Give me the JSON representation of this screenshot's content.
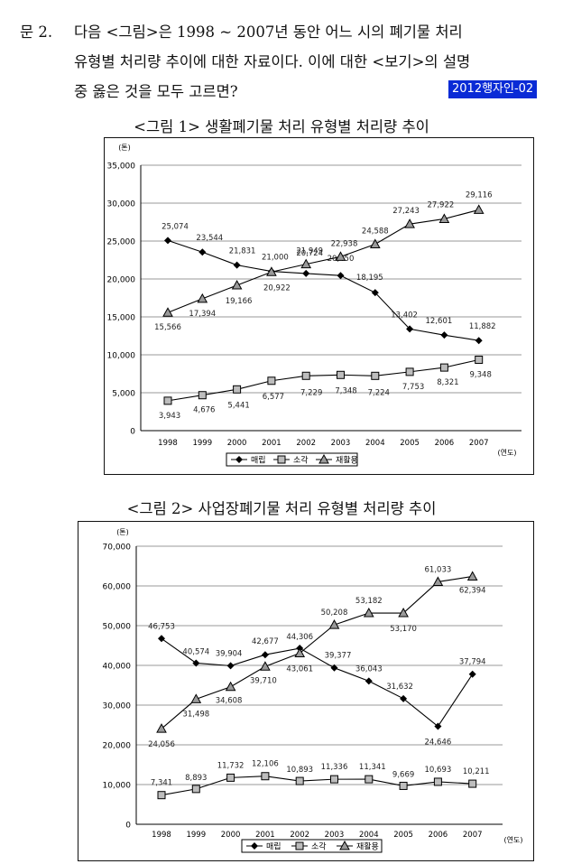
{
  "question": {
    "number": "문  2.",
    "lines": [
      "다음 <그림>은 1998 ~ 2007년 동안 어느 시의 폐기물 처리",
      "유형별 처리량 추이에 대한 자료이다. 이에 대한 <보기>의 설명",
      "중 옳은 것을 모두 고르면?"
    ],
    "tag": "2012행자인-02"
  },
  "figure1_title": "<그림 1> 생활폐기물 처리 유형별 처리량 추이",
  "figure2_title": "<그림 2> 사업장폐기물 처리 유형별 처리량 추이",
  "chart_data": [
    {
      "type": "line",
      "title": "<그림 1> 생활폐기물 처리 유형별 처리량 추이",
      "ylabel": "(톤)",
      "xlabel": "(연도)",
      "ylim": [
        0,
        35000
      ],
      "yticks": [
        "0",
        "5,000",
        "10,000",
        "15,000",
        "20,000",
        "25,000",
        "30,000",
        "35,000"
      ],
      "grid": true,
      "legend": "bottom",
      "categories": [
        "1998",
        "1999",
        "2000",
        "2001",
        "2002",
        "2003",
        "2004",
        "2005",
        "2006",
        "2007"
      ],
      "series": [
        {
          "name": "매립",
          "marker": "diamond",
          "values": [
            25074,
            23544,
            21831,
            21000,
            20724,
            20450,
            18195,
            13402,
            12601,
            11882
          ],
          "labels": [
            "25,074",
            "23,544",
            "21,831",
            "21,000",
            "20,724",
            "20,450",
            "18,195",
            "13,402",
            "12,601",
            "11,882"
          ]
        },
        {
          "name": "소각",
          "marker": "square",
          "values": [
            3943,
            4676,
            5441,
            6577,
            7229,
            7348,
            7224,
            7753,
            8321,
            9348
          ],
          "labels": [
            "3,943",
            "4,676",
            "5,441",
            "6,577",
            "7,229",
            "7,348",
            "7,224",
            "7,753",
            "8,321",
            "9,348"
          ]
        },
        {
          "name": "재활용",
          "marker": "triangle",
          "values": [
            15566,
            17394,
            19166,
            20922,
            21949,
            22938,
            24588,
            27243,
            27922,
            29116
          ],
          "labels": [
            "15,566",
            "17,394",
            "19,166",
            "20,922",
            "21,949",
            "22,938",
            "24,588",
            "27,243",
            "27,922",
            "29,116"
          ]
        }
      ]
    },
    {
      "type": "line",
      "title": "<그림 2> 사업장폐기물 처리 유형별 처리량 추이",
      "ylabel": "(톤)",
      "xlabel": "(연도)",
      "ylim": [
        0,
        70000
      ],
      "yticks": [
        "0",
        "10,000",
        "20,000",
        "30,000",
        "40,000",
        "50,000",
        "60,000",
        "70,000"
      ],
      "grid": true,
      "legend": "bottom",
      "categories": [
        "1998",
        "1999",
        "2000",
        "2001",
        "2002",
        "2003",
        "2004",
        "2005",
        "2006",
        "2007"
      ],
      "series": [
        {
          "name": "매립",
          "marker": "diamond",
          "values": [
            46753,
            40574,
            39904,
            42677,
            44306,
            39377,
            36043,
            31632,
            24646,
            37794
          ],
          "labels": [
            "46,753",
            "40,574",
            "39,904",
            "42,677",
            "44,306",
            "39,377",
            "36,043",
            "31,632",
            "24,646",
            "37,794"
          ]
        },
        {
          "name": "소각",
          "marker": "square",
          "values": [
            7341,
            8893,
            11732,
            12106,
            10893,
            11336,
            11341,
            9669,
            10693,
            10211
          ],
          "labels": [
            "7,341",
            "8,893",
            "11,732",
            "12,106",
            "10,893",
            "11,336",
            "11,341",
            "9,669",
            "10,693",
            "10,211"
          ]
        },
        {
          "name": "재활용",
          "marker": "triangle",
          "values": [
            24056,
            31498,
            34608,
            39710,
            43061,
            50208,
            53182,
            53170,
            61033,
            62394
          ],
          "labels": [
            "24,056",
            "31,498",
            "34,608",
            "39,710",
            "43,061",
            "50,208",
            "53,182",
            "53,170",
            "61,033",
            "62,394"
          ]
        }
      ]
    }
  ]
}
